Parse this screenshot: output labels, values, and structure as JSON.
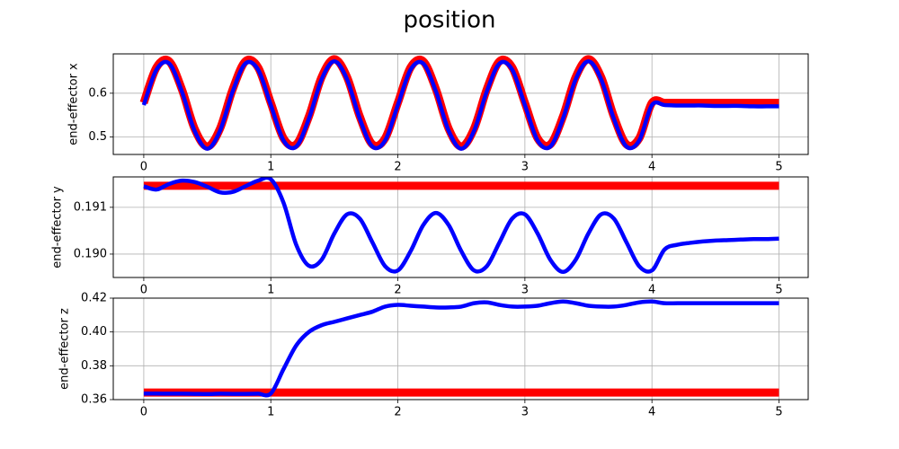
{
  "title": "position",
  "chart_data": [
    {
      "type": "line",
      "ylabel": "end-effector x",
      "x": [
        0,
        0.1,
        0.2,
        0.3,
        0.4,
        0.5,
        0.6,
        0.7,
        0.8,
        0.9,
        1,
        1.1,
        1.2,
        1.3,
        1.4,
        1.5,
        1.6,
        1.7,
        1.8,
        1.9,
        2,
        2.1,
        2.2,
        2.3,
        2.4,
        2.5,
        2.6,
        2.7,
        2.8,
        2.9,
        3,
        3.1,
        3.2,
        3.3,
        3.4,
        3.5,
        3.6,
        3.7,
        3.8,
        3.9,
        4,
        4.1,
        4.2,
        4.3,
        4.4,
        4.5,
        4.6,
        4.7,
        4.8,
        4.9,
        5
      ],
      "series": [
        {
          "color": "#ff0000",
          "values": [
            0.578,
            0.659,
            0.673,
            0.609,
            0.519,
            0.478,
            0.519,
            0.609,
            0.673,
            0.659,
            0.578,
            0.497,
            0.483,
            0.547,
            0.637,
            0.678,
            0.637,
            0.547,
            0.483,
            0.497,
            0.578,
            0.659,
            0.673,
            0.609,
            0.519,
            0.478,
            0.519,
            0.609,
            0.673,
            0.659,
            0.578,
            0.497,
            0.483,
            0.547,
            0.637,
            0.678,
            0.637,
            0.547,
            0.483,
            0.497,
            0.578,
            0.578,
            0.578,
            0.578,
            0.578,
            0.578,
            0.578,
            0.578,
            0.578,
            0.578,
            0.578
          ]
        },
        {
          "color": "#0000ff",
          "values": [
            0.573,
            0.654,
            0.668,
            0.604,
            0.514,
            0.473,
            0.514,
            0.604,
            0.668,
            0.654,
            0.573,
            0.492,
            0.478,
            0.542,
            0.632,
            0.673,
            0.632,
            0.542,
            0.478,
            0.492,
            0.573,
            0.654,
            0.668,
            0.604,
            0.514,
            0.473,
            0.514,
            0.604,
            0.668,
            0.654,
            0.573,
            0.492,
            0.478,
            0.542,
            0.632,
            0.673,
            0.632,
            0.542,
            0.478,
            0.492,
            0.573,
            0.573,
            0.572,
            0.572,
            0.572,
            0.571,
            0.571,
            0.571,
            0.57,
            0.57,
            0.57
          ]
        }
      ],
      "xlim": [
        -0.24,
        5.23
      ],
      "xticks": [
        0,
        1,
        2,
        3,
        4,
        5
      ],
      "ylim": [
        0.46,
        0.69
      ],
      "yticks": [
        0.5,
        0.6
      ],
      "grid": true
    },
    {
      "type": "line",
      "ylabel": "end-effector y",
      "x": [
        0,
        0.1,
        0.2,
        0.3,
        0.4,
        0.5,
        0.6,
        0.7,
        0.8,
        0.9,
        1,
        1.1,
        1.2,
        1.3,
        1.4,
        1.5,
        1.6,
        1.7,
        1.8,
        1.9,
        2,
        2.1,
        2.2,
        2.3,
        2.4,
        2.5,
        2.6,
        2.7,
        2.8,
        2.9,
        3,
        3.1,
        3.2,
        3.3,
        3.4,
        3.5,
        3.6,
        3.7,
        3.8,
        3.9,
        4,
        4.1,
        4.2,
        4.3,
        4.4,
        4.5,
        4.6,
        4.7,
        4.8,
        4.9,
        5
      ],
      "series": [
        {
          "color": "#ff0000",
          "values": [
            0.19146,
            0.19146,
            0.19146,
            0.19146,
            0.19146,
            0.19146,
            0.19146,
            0.19146,
            0.19146,
            0.19146,
            0.19146,
            0.19146,
            0.19146,
            0.19146,
            0.19146,
            0.19146,
            0.19146,
            0.19146,
            0.19146,
            0.19146,
            0.19146,
            0.19146,
            0.19146,
            0.19146,
            0.19146,
            0.19146,
            0.19146,
            0.19146,
            0.19146,
            0.19146,
            0.19146,
            0.19146,
            0.19146,
            0.19146,
            0.19146,
            0.19146,
            0.19146,
            0.19146,
            0.19146,
            0.19146,
            0.19146,
            0.19146,
            0.19146,
            0.19146,
            0.19146,
            0.19146,
            0.19146,
            0.19146,
            0.19146,
            0.19146,
            0.19146
          ]
        },
        {
          "color": "#0000ff",
          "values": [
            0.19145,
            0.19138,
            0.1915,
            0.19157,
            0.19154,
            0.19144,
            0.19132,
            0.19133,
            0.19145,
            0.19157,
            0.1916,
            0.1911,
            0.1902,
            0.18975,
            0.18988,
            0.19044,
            0.19085,
            0.19076,
            0.19025,
            0.18974,
            0.18965,
            0.19006,
            0.19062,
            0.19088,
            0.19062,
            0.19006,
            0.18965,
            0.18974,
            0.19025,
            0.19076,
            0.19085,
            0.19044,
            0.18988,
            0.18962,
            0.18988,
            0.19044,
            0.19085,
            0.19076,
            0.19025,
            0.18974,
            0.18965,
            0.1901,
            0.1902,
            0.19024,
            0.19027,
            0.19029,
            0.1903,
            0.19031,
            0.19032,
            0.19032,
            0.19033
          ]
        }
      ],
      "xlim": [
        -0.24,
        5.23
      ],
      "xticks": [
        0,
        1,
        2,
        3,
        4,
        5
      ],
      "ylim": [
        0.1895,
        0.19165
      ],
      "yticks": [
        {
          "value": 0.19,
          "label": "0.190"
        },
        0.191
      ],
      "grid": true
    },
    {
      "type": "line",
      "ylabel": "end-effector z",
      "x": [
        0,
        0.1,
        0.2,
        0.3,
        0.4,
        0.5,
        0.6,
        0.7,
        0.8,
        0.9,
        1,
        1.1,
        1.2,
        1.3,
        1.4,
        1.5,
        1.6,
        1.7,
        1.8,
        1.9,
        2,
        2.1,
        2.2,
        2.3,
        2.4,
        2.5,
        2.6,
        2.7,
        2.8,
        2.9,
        3,
        3.1,
        3.2,
        3.3,
        3.4,
        3.5,
        3.6,
        3.7,
        3.8,
        3.9,
        4,
        4.1,
        4.2,
        4.3,
        4.4,
        4.5,
        4.6,
        4.7,
        4.8,
        4.9,
        5
      ],
      "series": [
        {
          "color": "#ff0000",
          "values": [
            0.3642,
            0.3642,
            0.3642,
            0.3642,
            0.3642,
            0.3642,
            0.3642,
            0.3642,
            0.3642,
            0.3642,
            0.3642,
            0.3642,
            0.3642,
            0.3642,
            0.3642,
            0.3642,
            0.3642,
            0.3642,
            0.3642,
            0.3642,
            0.3642,
            0.3642,
            0.3642,
            0.3642,
            0.3642,
            0.3642,
            0.3642,
            0.3642,
            0.3642,
            0.3642,
            0.3642,
            0.3642,
            0.3642,
            0.3642,
            0.3642,
            0.3642,
            0.3642,
            0.3642,
            0.3642,
            0.3642,
            0.3642,
            0.3642,
            0.3642,
            0.3642,
            0.3642,
            0.3642,
            0.3642,
            0.3642,
            0.3642,
            0.3642,
            0.3642
          ]
        },
        {
          "color": "#0000ff",
          "values": [
            0.3636,
            0.3636,
            0.3635,
            0.3635,
            0.3634,
            0.3633,
            0.3635,
            0.3634,
            0.3634,
            0.3635,
            0.3636,
            0.378,
            0.392,
            0.4,
            0.404,
            0.406,
            0.408,
            0.41,
            0.412,
            0.415,
            0.416,
            0.4155,
            0.415,
            0.4145,
            0.4145,
            0.415,
            0.417,
            0.4175,
            0.416,
            0.415,
            0.415,
            0.4155,
            0.417,
            0.418,
            0.417,
            0.4155,
            0.415,
            0.415,
            0.416,
            0.4175,
            0.418,
            0.417,
            0.417,
            0.417,
            0.417,
            0.417,
            0.417,
            0.417,
            0.417,
            0.417,
            0.417
          ]
        }
      ],
      "xlim": [
        -0.24,
        5.23
      ],
      "xticks": [
        0,
        1,
        2,
        3,
        4,
        5
      ],
      "ylim": [
        0.36,
        0.42
      ],
      "yticks": [
        0.36,
        0.38,
        {
          "value": 0.4,
          "label": "0.40"
        },
        0.42
      ],
      "grid": true
    }
  ]
}
